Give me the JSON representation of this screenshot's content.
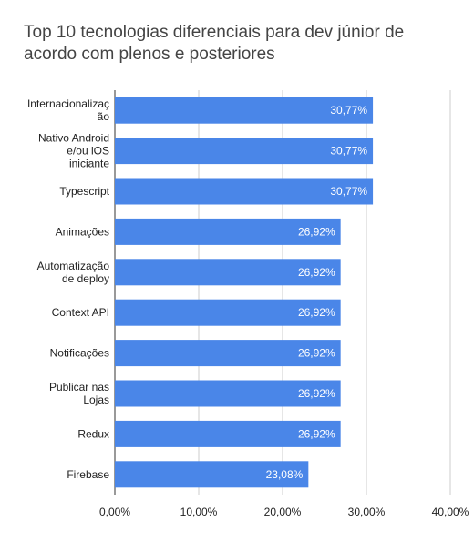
{
  "chart_data": {
    "type": "bar",
    "orientation": "horizontal",
    "title": "Top 10 tecnologias diferenciais para dev júnior de acordo com plenos e posteriores",
    "xlabel": "",
    "ylabel": "",
    "xlim": [
      0,
      40
    ],
    "grid": true,
    "categories": [
      [
        "Internacionalizaç",
        "ão"
      ],
      [
        "Nativo Android",
        "e/ou iOS",
        "iniciante"
      ],
      [
        "Typescript"
      ],
      [
        "Animações"
      ],
      [
        "Automatização",
        "de deploy"
      ],
      [
        "Context API"
      ],
      [
        "Notificações"
      ],
      [
        "Publicar nas",
        "Lojas"
      ],
      [
        "Redux"
      ],
      [
        "Firebase"
      ]
    ],
    "values": [
      30.77,
      30.77,
      30.77,
      26.92,
      26.92,
      26.92,
      26.92,
      26.92,
      26.92,
      23.08
    ],
    "value_labels": [
      "30,77%",
      "30,77%",
      "30,77%",
      "26,92%",
      "26,92%",
      "26,92%",
      "26,92%",
      "26,92%",
      "26,92%",
      "23,08%"
    ],
    "ticks": [
      0,
      10,
      20,
      30,
      40
    ],
    "tick_labels": [
      "0,00%",
      "10,00%",
      "20,00%",
      "30,00%",
      "40,00%"
    ],
    "bar_color": "#4a86e8",
    "grid_color": "#cccccc",
    "axis_color": "#333333"
  }
}
